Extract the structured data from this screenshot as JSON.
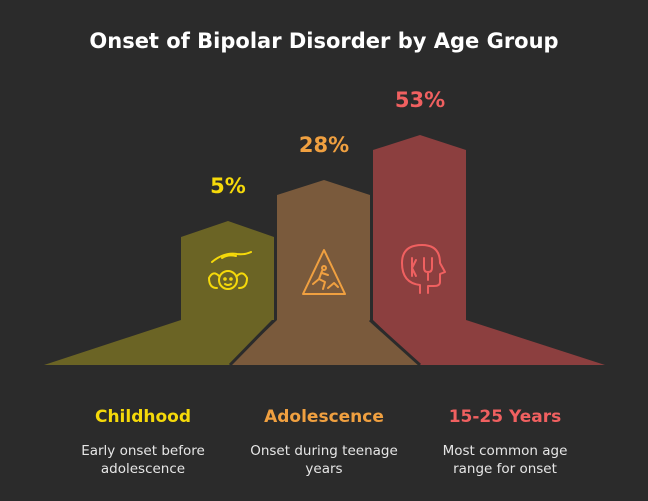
{
  "title": "Onset of Bipolar Disorder by Age Group",
  "stages": [
    {
      "share": "5%",
      "label": "Childhood",
      "description": [
        "Early onset before",
        "adolescence"
      ]
    },
    {
      "share": "28%",
      "label": "Adolescence",
      "description": [
        "Onset during teenage",
        "years"
      ]
    },
    {
      "share": "53%",
      "label": "15-25 Years",
      "description": [
        "Most common age",
        "range for onset"
      ]
    }
  ]
}
